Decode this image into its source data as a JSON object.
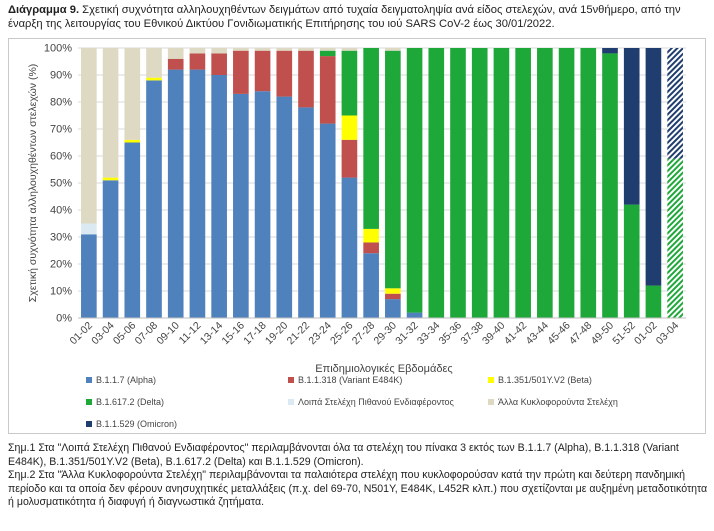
{
  "title": {
    "label": "Διάγραμμα 9.",
    "text": "Σχετική συχνότητα αλληλουχηθέντων δειγμάτων από τυχαία δειγματοληψία ανά είδος στελεχών, ανά 15νθήμερο, από την έναρξη της λειτουργίας του Εθνικού Δικτύου Γονιδιωματικής Επιτήρησης του ιού SARS CoV-2 έως 30/01/2022."
  },
  "chart_data": {
    "type": "bar",
    "stacked": true,
    "xlabel": "Επιδημιολογικές Εβδομάδες",
    "ylabel": "Σχετική συχνότητα αλληλουχηθέντων στελεχών (%)",
    "ylim": [
      0,
      100
    ],
    "yticks": [
      "0%",
      "10%",
      "20%",
      "30%",
      "40%",
      "50%",
      "60%",
      "70%",
      "80%",
      "90%",
      "100%"
    ],
    "grid": "horizontal",
    "legend_position": "bottom",
    "categories": [
      "01-02",
      "03-04",
      "05-06",
      "07-08",
      "09-10",
      "11-12",
      "13-14",
      "15-16",
      "17-18",
      "19-20",
      "21-22",
      "23-24",
      "25-26",
      "27-28",
      "29-30",
      "31-32",
      "33-34",
      "35-36",
      "37-38",
      "39-40",
      "41-42",
      "43-44",
      "45-46",
      "47-48",
      "49-50",
      "51-52",
      "01-02",
      "03-04"
    ],
    "series": [
      {
        "name": "B.1.1.7 (Alpha)",
        "color": "#4f81bd",
        "pattern": "solid",
        "values": [
          31,
          51,
          65,
          88,
          92,
          92,
          90,
          83,
          84,
          82,
          78,
          72,
          52,
          24,
          7,
          2,
          0,
          0,
          0,
          0,
          0,
          0,
          0,
          0,
          0,
          0,
          0,
          0
        ]
      },
      {
        "name": "B.1.1.318 (Variant E484K)",
        "color": "#c0504d",
        "pattern": "solid",
        "values": [
          0,
          0,
          0,
          0,
          4,
          6,
          8,
          16,
          15,
          17,
          21,
          25,
          14,
          4,
          2,
          0,
          0,
          0,
          0,
          0,
          0,
          0,
          0,
          0,
          0,
          0,
          0,
          0
        ]
      },
      {
        "name": "B.1.351/501Y.V2 (Beta)",
        "color": "#ffff00",
        "pattern": "solid",
        "values": [
          0,
          1,
          1,
          1,
          0,
          0,
          0,
          0,
          0,
          0,
          0,
          0,
          9,
          5,
          2,
          0,
          0,
          0,
          0,
          0,
          0,
          0,
          0,
          0,
          0,
          0,
          0,
          0
        ]
      },
      {
        "name": "B.1.617.2 (Delta)",
        "color": "#1fa83a",
        "pattern": "solid",
        "values": [
          0,
          0,
          0,
          0,
          0,
          0,
          0,
          0,
          0,
          0,
          0,
          2,
          24,
          67,
          88,
          98,
          100,
          100,
          100,
          100,
          100,
          100,
          100,
          100,
          98,
          42,
          12,
          59
        ]
      },
      {
        "name": "Λοιπά Στελέχη Πιθανού Ενδιαφέροντος",
        "color": "#dbe9f2",
        "pattern": "solid",
        "values": [
          4,
          0,
          0,
          0,
          0,
          0,
          0,
          0,
          0,
          0,
          0,
          0,
          0,
          0,
          0,
          0,
          0,
          0,
          0,
          0,
          0,
          0,
          0,
          0,
          0,
          0,
          0,
          0
        ]
      },
      {
        "name": "Άλλα Κυκλοφορούντα Στελέχη",
        "color": "#ddd9c3",
        "pattern": "solid",
        "values": [
          65,
          48,
          34,
          11,
          4,
          2,
          2,
          1,
          1,
          1,
          1,
          1,
          1,
          0,
          1,
          0,
          0,
          0,
          0,
          0,
          0,
          0,
          0,
          0,
          0,
          0,
          0,
          0
        ]
      },
      {
        "name": "B.1.1.529 (Omicron)",
        "color": "#1f3d6e",
        "pattern": "solid",
        "values": [
          0,
          0,
          0,
          0,
          0,
          0,
          0,
          0,
          0,
          0,
          0,
          0,
          0,
          0,
          0,
          0,
          0,
          0,
          0,
          0,
          0,
          0,
          0,
          0,
          2,
          58,
          88,
          41
        ]
      }
    ],
    "hatched_categories": [
      "03-04"
    ]
  },
  "notes": [
    "Σημ.1 Στα \"Λοιπά Στελέχη Πιθανού Ενδιαφέροντος\" περιλαμβάνονται όλα τα στελέχη του πίνακα 3 εκτός των B.1.1.7 (Alpha), B.1.1.318 (Variant E484K), B.1.351/501Y.V2 (Beta), B.1.617.2 (Delta) και B.1.1.529 (Omicron).",
    "Σημ.2 Στα \"Άλλα Κυκλοφορούντα Στελέχη\" περιλαμβάνονται τα παλαιότερα στελέχη που κυκλοφορούσαν κατά την πρώτη και δεύτερη πανδημική περίοδο και τα οποία δεν φέρουν ανησυχητικές μεταλλάξεις (π.χ. del 69-70, N501Y, E484K, L452R κλπ.) που σχετίζονται με αυξημένη μεταδοτικότητα ή μολυσματικότητα ή διαφυγή ή διαγνωστικά ζητήματα."
  ]
}
